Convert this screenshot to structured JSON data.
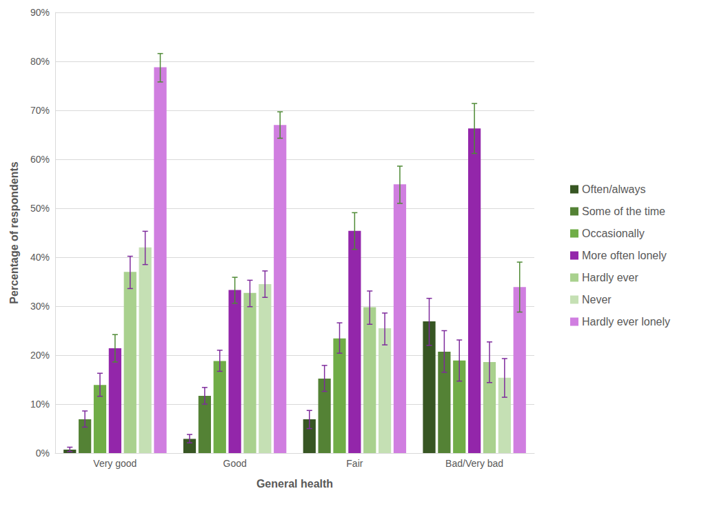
{
  "chart_data": {
    "type": "bar",
    "x_label": "General health",
    "y_label": "Percentage of respondents",
    "categories": [
      "Very good",
      "Good",
      "Fair",
      "Bad/Very bad"
    ],
    "series": [
      {
        "name": "Often/always",
        "color": "#375623",
        "values": [
          0.7,
          2.9,
          6.9,
          26.9
        ],
        "errors": [
          [
            0.3,
            1.2
          ],
          [
            2.1,
            3.8
          ],
          [
            5.0,
            8.7
          ],
          [
            22.0,
            31.6
          ]
        ]
      },
      {
        "name": "Some of the time",
        "color": "#548235",
        "values": [
          6.9,
          11.7,
          15.2,
          20.7
        ],
        "errors": [
          [
            5.3,
            8.6
          ],
          [
            10.0,
            13.4
          ],
          [
            12.6,
            17.9
          ],
          [
            16.5,
            25.0
          ]
        ]
      },
      {
        "name": "Occasionally",
        "color": "#70AD47",
        "values": [
          13.9,
          18.8,
          23.4,
          18.9
        ],
        "errors": [
          [
            11.6,
            16.3
          ],
          [
            16.7,
            21.0
          ],
          [
            20.4,
            26.6
          ],
          [
            14.7,
            23.1
          ]
        ]
      },
      {
        "name": "More often lonely",
        "color": "#9326AA",
        "values": [
          21.4,
          33.3,
          45.4,
          66.3
        ],
        "errors": [
          [
            18.6,
            24.2
          ],
          [
            30.6,
            35.9
          ],
          [
            41.6,
            49.1
          ],
          [
            61.2,
            71.4
          ]
        ]
      },
      {
        "name": "Hardly ever",
        "color": "#A9D18E",
        "values": [
          37.0,
          32.7,
          29.8,
          18.6
        ],
        "errors": [
          [
            33.6,
            40.2
          ],
          [
            29.9,
            35.3
          ],
          [
            26.3,
            33.1
          ],
          [
            14.4,
            22.7
          ]
        ]
      },
      {
        "name": "Never",
        "color": "#C5E0B4",
        "values": [
          42.0,
          34.5,
          25.5,
          15.4
        ],
        "errors": [
          [
            38.5,
            45.3
          ],
          [
            31.8,
            37.2
          ],
          [
            22.1,
            28.6
          ],
          [
            11.4,
            19.3
          ]
        ]
      },
      {
        "name": "Hardly ever lonely",
        "color": "#D07EE0",
        "values": [
          78.8,
          67.0,
          54.9,
          33.9
        ],
        "errors": [
          [
            75.8,
            81.6
          ],
          [
            64.3,
            69.7
          ],
          [
            51.0,
            58.6
          ],
          [
            28.8,
            39.0
          ]
        ]
      }
    ],
    "ylim": [
      0,
      90
    ],
    "yticks": [
      {
        "value": 0,
        "label": "0%"
      },
      {
        "value": 10,
        "label": "10%"
      },
      {
        "value": 20,
        "label": "20%"
      },
      {
        "value": 30,
        "label": "30%"
      },
      {
        "value": 40,
        "label": "40%"
      },
      {
        "value": 50,
        "label": "50%"
      },
      {
        "value": 60,
        "label": "60%"
      },
      {
        "value": 70,
        "label": "70%"
      },
      {
        "value": 80,
        "label": "80%"
      },
      {
        "value": 90,
        "label": "90%"
      }
    ],
    "grid": true,
    "legend": "right",
    "data_labels": false
  }
}
